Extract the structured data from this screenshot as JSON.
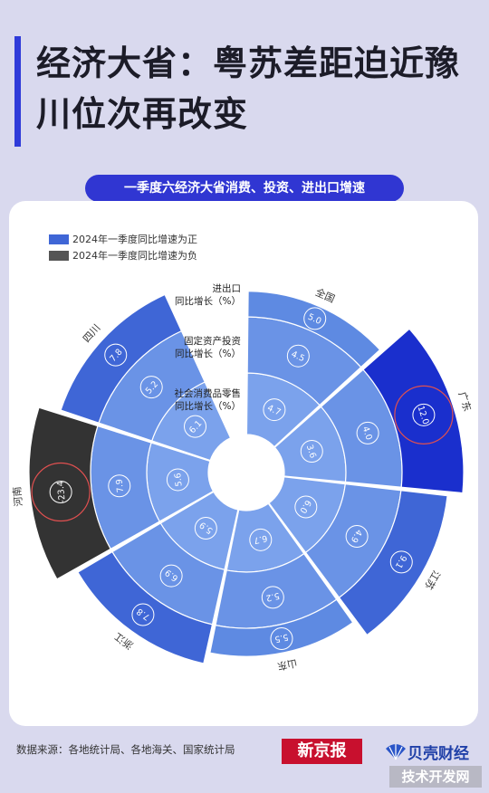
{
  "title": "经济大省：粤苏差距迫近豫川位次再改变",
  "subtitle": "一季度六经济大省消费、投资、进出口增速",
  "legend": {
    "positive": "2024年一季度同比增速为正",
    "negative": "2024年一季度同比增速为负"
  },
  "ring_labels": {
    "outer": [
      "进出口",
      "同比增长（%）"
    ],
    "middle": [
      "固定资产投资",
      "同比增长（%）"
    ],
    "inner": [
      "社会消费品零售",
      "同比增长（%）"
    ]
  },
  "footer": {
    "source": "数据来源：各地统计局、各地海关、国家统计局",
    "logo_xjb": "新京报",
    "logo_bk": "贝壳财经",
    "watermark": "技术开发网"
  },
  "colors": {
    "background": "#d9d9ee",
    "title_bar": "#2f3bd9",
    "inner_ring": "#7ba2ec",
    "middle_ring": "#6a93e6",
    "outer_light": "#5e8ae2",
    "outer_mid": "#3f66d6",
    "outer_dark": "#1a2fcd",
    "negative": "#333333",
    "highlight_circle": "#e05050"
  },
  "chart_data": {
    "type": "polar-bar",
    "categories": [
      "全国",
      "广东",
      "江苏",
      "山东",
      "浙江",
      "河南",
      "四川"
    ],
    "series": [
      {
        "name": "社会消费品零售同比增长（%）",
        "values": [
          4.7,
          3.6,
          6.0,
          6.7,
          5.9,
          5.6,
          6.1
        ]
      },
      {
        "name": "固定资产投资同比增长（%）",
        "values": [
          4.5,
          4.0,
          4.9,
          5.2,
          6.9,
          7.9,
          5.2
        ]
      },
      {
        "name": "进出口同比增长（%）",
        "values": [
          5.0,
          12.0,
          9.1,
          5.5,
          7.8,
          -23.4,
          7.8
        ]
      }
    ],
    "highlighted": [
      "广东进出口",
      "河南进出口"
    ]
  }
}
